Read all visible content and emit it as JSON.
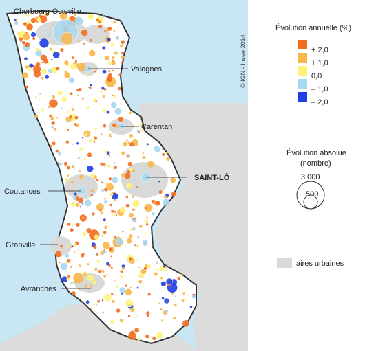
{
  "cities": [
    {
      "name": "Cherbourg-Octeville",
      "bold": false
    },
    {
      "name": "Valognes",
      "bold": false
    },
    {
      "name": "Carentan",
      "bold": false
    },
    {
      "name": "SAINT-LÔ",
      "bold": true
    },
    {
      "name": "Coutances",
      "bold": false
    },
    {
      "name": "Granville",
      "bold": false
    },
    {
      "name": "Avranches",
      "bold": false
    }
  ],
  "legend": {
    "annual_title": "Évolution annuelle (%)",
    "classes": [
      {
        "label": "+ 2,0",
        "color": "#f26d1e"
      },
      {
        "label": "+ 1,0",
        "color": "#f9b64a"
      },
      {
        "label": "0,0",
        "color": "#fdf37a"
      },
      {
        "label": "– 1,0",
        "color": "#a6d8f2"
      },
      {
        "label": "– 2,0",
        "color": "#1f3fe6"
      }
    ],
    "absolute_title_1": "Évolution absolue",
    "absolute_title_2": "(nombre)",
    "size_values": [
      "3 000",
      "500"
    ],
    "urban_label": "aires urbaines",
    "urban_color": "#d9d9d9"
  },
  "copyright": "© IGN - Insee 2014",
  "colors": {
    "sea": "#c9e6f4",
    "land": "#dcdcdc",
    "territory": "#ffffff",
    "urban": "#d9d9d9",
    "border": "#333333"
  }
}
